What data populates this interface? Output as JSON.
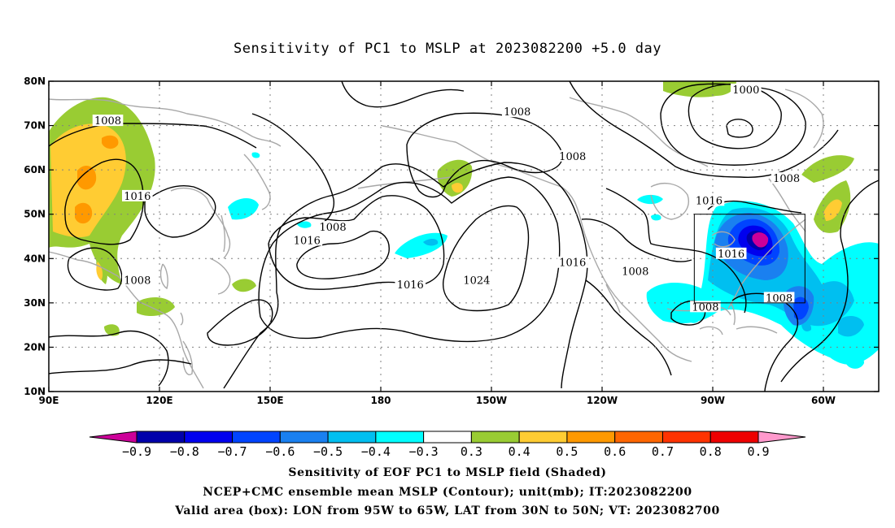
{
  "title": "Sensitivity of PC1 to MSLP at 2023082200 +5.0 day",
  "captions": [
    "Sensitivity of EOF PC1 to MSLP field (Shaded)",
    "NCEP+CMC ensemble mean MSLP (Contour); unit(mb); IT:2023082200",
    "Valid area (box): LON from 95W to 65W, LAT from 30N to 50N; VT: 2023082700"
  ],
  "map": {
    "lon_ticks": [
      "90E",
      "120E",
      "150E",
      "180",
      "150W",
      "120W",
      "90W",
      "60W"
    ],
    "lat_ticks": [
      "80N",
      "70N",
      "60N",
      "50N",
      "40N",
      "30N",
      "20N",
      "10N"
    ],
    "valid_box": {
      "lon_range": [
        "95W",
        "65W"
      ],
      "lat_range": [
        "30N",
        "50N"
      ]
    }
  },
  "contour_labels": [
    {
      "text": "1008",
      "lon": 106,
      "lat": 71
    },
    {
      "text": "1016",
      "lon": 114,
      "lat": 54
    },
    {
      "text": "1008",
      "lon": 114,
      "lat": 35
    },
    {
      "text": "1008",
      "lon": 167,
      "lat": 47
    },
    {
      "text": "1016",
      "lon": 160,
      "lat": 44
    },
    {
      "text": "1016",
      "lon": 188,
      "lat": 34
    },
    {
      "text": "1024",
      "lon": 206,
      "lat": 35
    },
    {
      "text": "1008",
      "lon": 217,
      "lat": 73
    },
    {
      "text": "1008",
      "lon": 232,
      "lat": 63
    },
    {
      "text": "1016",
      "lon": 232,
      "lat": 39
    },
    {
      "text": "1008",
      "lon": 249,
      "lat": 37
    },
    {
      "text": "1000",
      "lon": 279,
      "lat": 78
    },
    {
      "text": "1008",
      "lon": 290,
      "lat": 58
    },
    {
      "text": "1016",
      "lon": 269,
      "lat": 53
    },
    {
      "text": "1016",
      "lon": 275,
      "lat": 41
    },
    {
      "text": "1008",
      "lon": 288,
      "lat": 31
    },
    {
      "text": "1008",
      "lon": 268,
      "lat": 29
    }
  ],
  "colorbar": {
    "labels": [
      "−0.9",
      "−0.8",
      "−0.7",
      "−0.6",
      "−0.5",
      "−0.4",
      "−0.3",
      "0.3",
      "0.4",
      "0.5",
      "0.6",
      "0.7",
      "0.8",
      "0.9"
    ],
    "colors": [
      "#cc0099",
      "#0000aa",
      "#0000ee",
      "#0044ff",
      "#1a80f0",
      "#00bff0",
      "#00ffff",
      "#ffffff",
      "#99cc33",
      "#ffcc33",
      "#ff9900",
      "#ff6600",
      "#ff3300",
      "#ee0000",
      "#ff99cc"
    ]
  },
  "colors": {
    "contour": "#000000",
    "coast": "#a8a8a8",
    "grid": "#808080",
    "box": "#000000"
  }
}
